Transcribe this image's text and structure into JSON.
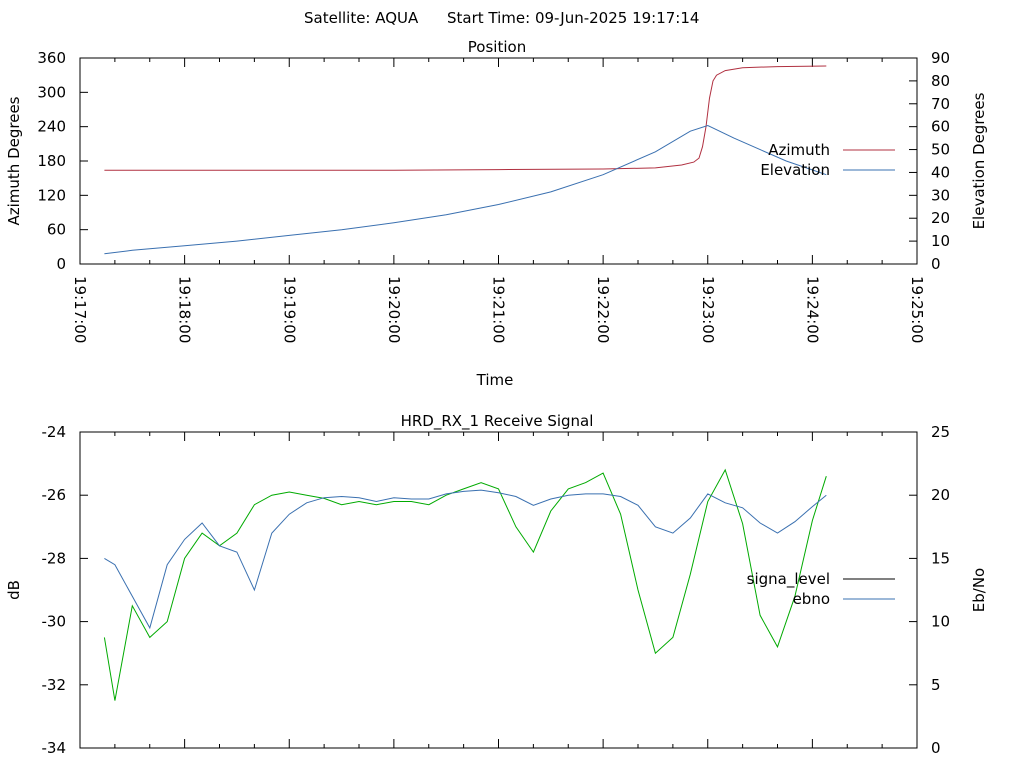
{
  "header": {
    "satellite_label": "Satellite: AQUA",
    "start_time_label": "Start Time: 09-Jun-2025 19:17:14"
  },
  "chart_data": [
    {
      "type": "line",
      "title": "Position",
      "xlabel": "Time",
      "ylabel": "Azimuth Degrees",
      "y2label": "Elevation Degrees",
      "xlim": [
        "19:17:00",
        "19:25:00"
      ],
      "x_ticks": [
        "19:17:00",
        "19:18:00",
        "19:19:00",
        "19:20:00",
        "19:21:00",
        "19:22:00",
        "19:23:00",
        "19:24:00",
        "19:25:00"
      ],
      "ylim": [
        0,
        360
      ],
      "y_ticks": [
        "0",
        "60",
        "120",
        "180",
        "240",
        "300",
        "360"
      ],
      "y2lim": [
        0,
        90
      ],
      "y2_ticks": [
        "0",
        "10",
        "20",
        "30",
        "40",
        "50",
        "60",
        "70",
        "80",
        "90"
      ],
      "legend_position": "right",
      "series": [
        {
          "name": "Azimuth",
          "axis": "left",
          "color": "#b03040",
          "x": [
            "19:17:14",
            "19:18:00",
            "19:19:00",
            "19:20:00",
            "19:21:00",
            "19:22:00",
            "19:22:30",
            "19:22:45",
            "19:22:52",
            "19:22:55",
            "19:22:57",
            "19:22:59",
            "19:23:01",
            "19:23:03",
            "19:23:05",
            "19:23:10",
            "19:23:20",
            "19:23:40",
            "19:24:08"
          ],
          "values": [
            164,
            164,
            164,
            164,
            165,
            166,
            168,
            173,
            178,
            185,
            205,
            240,
            290,
            320,
            330,
            338,
            343,
            345,
            346
          ]
        },
        {
          "name": "Elevation",
          "axis": "right",
          "color": "#3a70b0",
          "x": [
            "19:17:14",
            "19:17:30",
            "19:18:00",
            "19:18:30",
            "19:19:00",
            "19:19:30",
            "19:20:00",
            "19:20:30",
            "19:21:00",
            "19:21:30",
            "19:22:00",
            "19:22:30",
            "19:22:50",
            "19:23:00",
            "19:23:15",
            "19:23:30",
            "19:23:45",
            "19:24:08"
          ],
          "values": [
            4.5,
            6,
            8,
            10,
            12.5,
            15,
            18,
            21.5,
            26,
            31.5,
            39,
            49,
            58,
            60.5,
            55,
            50,
            45,
            39
          ]
        }
      ]
    },
    {
      "type": "line",
      "title": "HRD_RX_1 Receive Signal",
      "xlabel": "",
      "ylabel": "dB",
      "y2label": "Eb/No",
      "xlim": [
        "19:17:00",
        "19:25:00"
      ],
      "ylim": [
        -34,
        -24
      ],
      "y_ticks": [
        "-24",
        "-26",
        "-28",
        "-30",
        "-32",
        "-34"
      ],
      "y2lim": [
        0,
        25
      ],
      "y2_ticks": [
        "0",
        "5",
        "10",
        "15",
        "20",
        "25"
      ],
      "legend_position": "right",
      "series": [
        {
          "name": "signa_level",
          "axis": "left",
          "color": "#00aa00",
          "x": [
            "19:17:14",
            "19:17:20",
            "19:17:30",
            "19:17:40",
            "19:17:50",
            "19:18:00",
            "19:18:10",
            "19:18:20",
            "19:18:30",
            "19:18:40",
            "19:18:50",
            "19:19:00",
            "19:19:10",
            "19:19:20",
            "19:19:30",
            "19:19:40",
            "19:19:50",
            "19:20:00",
            "19:20:10",
            "19:20:20",
            "19:20:30",
            "19:20:40",
            "19:20:50",
            "19:21:00",
            "19:21:10",
            "19:21:20",
            "19:21:30",
            "19:21:40",
            "19:21:50",
            "19:22:00",
            "19:22:10",
            "19:22:20",
            "19:22:30",
            "19:22:40",
            "19:22:50",
            "19:23:00",
            "19:23:10",
            "19:23:20",
            "19:23:30",
            "19:23:40",
            "19:23:50",
            "19:24:00",
            "19:24:08"
          ],
          "values": [
            -30.5,
            -32.5,
            -29.5,
            -30.5,
            -30.0,
            -28.0,
            -27.2,
            -27.6,
            -27.2,
            -26.3,
            -26.0,
            -25.9,
            -26.0,
            -26.1,
            -26.3,
            -26.2,
            -26.3,
            -26.2,
            -26.2,
            -26.3,
            -26.0,
            -25.8,
            -25.6,
            -25.8,
            -27.0,
            -27.8,
            -26.5,
            -25.8,
            -25.6,
            -25.3,
            -26.6,
            -29.0,
            -31.0,
            -30.5,
            -28.5,
            -26.2,
            -25.2,
            -26.9,
            -29.8,
            -30.8,
            -29.2,
            -26.8,
            -25.4
          ]
        },
        {
          "name": "ebno",
          "axis": "right",
          "color": "#3a70b0",
          "x": [
            "19:17:14",
            "19:17:20",
            "19:17:30",
            "19:17:40",
            "19:17:50",
            "19:18:00",
            "19:18:10",
            "19:18:20",
            "19:18:30",
            "19:18:40",
            "19:18:50",
            "19:19:00",
            "19:19:10",
            "19:19:20",
            "19:19:30",
            "19:19:40",
            "19:19:50",
            "19:20:00",
            "19:20:10",
            "19:20:20",
            "19:20:30",
            "19:20:40",
            "19:20:50",
            "19:21:00",
            "19:21:10",
            "19:21:20",
            "19:21:30",
            "19:21:40",
            "19:21:50",
            "19:22:00",
            "19:22:10",
            "19:22:20",
            "19:22:30",
            "19:22:40",
            "19:22:50",
            "19:23:00",
            "19:23:10",
            "19:23:20",
            "19:23:30",
            "19:23:40",
            "19:23:50",
            "19:24:00",
            "19:24:08"
          ],
          "values": [
            15,
            14.5,
            12,
            9.5,
            14.5,
            16.5,
            17.8,
            16,
            15.5,
            12.5,
            17,
            18.5,
            19.4,
            19.8,
            19.9,
            19.8,
            19.5,
            19.8,
            19.7,
            19.7,
            20.1,
            20.3,
            20.4,
            20.2,
            19.9,
            19.2,
            19.7,
            20.0,
            20.1,
            20.1,
            19.9,
            19.2,
            17.5,
            17.0,
            18.2,
            20.1,
            19.4,
            19.0,
            17.8,
            17.0,
            17.9,
            19.1,
            20.0
          ]
        }
      ]
    }
  ]
}
